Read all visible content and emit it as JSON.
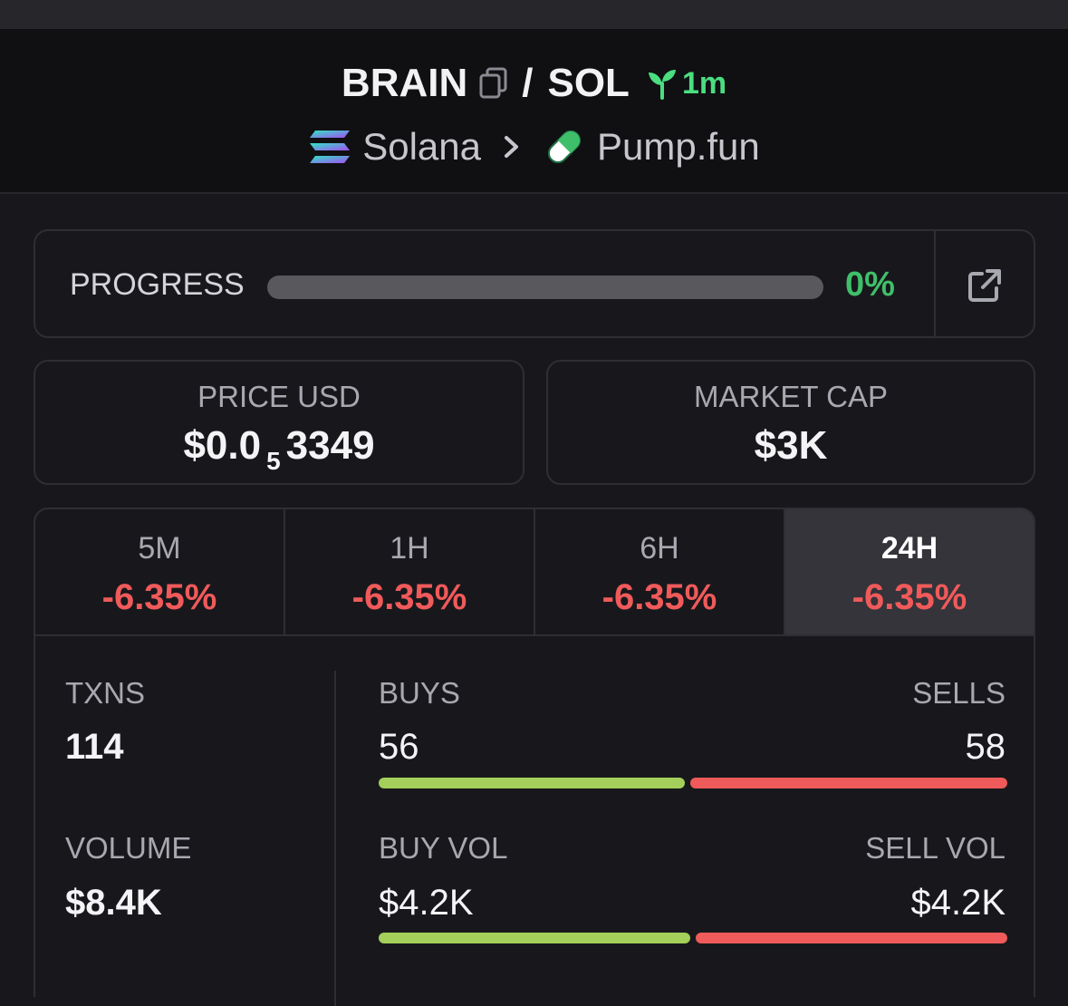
{
  "header": {
    "token": "BRAIN",
    "quote": "SOL",
    "slash": "/",
    "age": "1m",
    "chain": "Solana",
    "dex": "Pump.fun"
  },
  "progress": {
    "label": "PROGRESS",
    "value_text": "0%",
    "value": 0
  },
  "price": {
    "label": "PRICE USD",
    "prefix": "$0.0",
    "zeros": "5",
    "suffix": "3349"
  },
  "market_cap": {
    "label": "MARKET CAP",
    "value": "$3K"
  },
  "tabs": [
    {
      "label": "5M",
      "change": "-6.35%"
    },
    {
      "label": "1H",
      "change": "-6.35%"
    },
    {
      "label": "6H",
      "change": "-6.35%"
    },
    {
      "label": "24H",
      "change": "-6.35%"
    }
  ],
  "active_tab": "24H",
  "stats": {
    "txns_label": "TXNS",
    "txns": "114",
    "volume_label": "VOLUME",
    "volume": "$8.4K",
    "buys_label": "BUYS",
    "buys": "56",
    "sells_label": "SELLS",
    "sells": "58",
    "buy_vol_label": "BUY VOL",
    "buy_vol": "$4.2K",
    "sell_vol_label": "SELL VOL",
    "sell_vol": "$4.2K"
  },
  "colors": {
    "positive": "#3fbf6a",
    "negative": "#f05a5a",
    "buy_bar": "#a3cf5a",
    "sell_bar": "#ef5a5a"
  }
}
